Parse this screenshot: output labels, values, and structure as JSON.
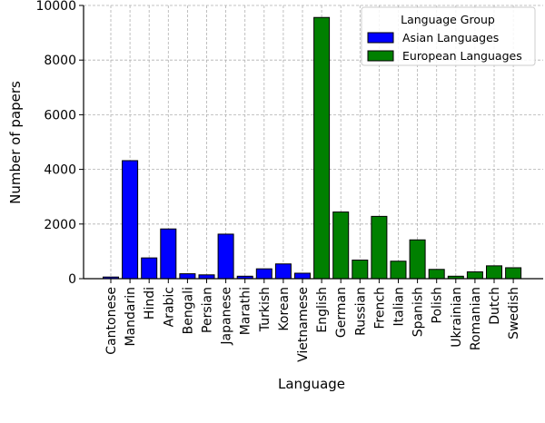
{
  "chart_data": {
    "type": "bar",
    "xlabel": "Language",
    "ylabel": "Number of papers",
    "ylim": [
      0,
      10000
    ],
    "yticks": [
      0,
      2000,
      4000,
      6000,
      8000,
      10000
    ],
    "grid": true,
    "legend": {
      "title": "Language Group",
      "placement": "top-right",
      "entries": [
        {
          "label": "Asian Languages",
          "color": "#0000ff"
        },
        {
          "label": "European Languages",
          "color": "#008000"
        }
      ]
    },
    "categories": [
      "Cantonese",
      "Mandarin",
      "Hindi",
      "Arabic",
      "Bengali",
      "Persian",
      "Japanese",
      "Marathi",
      "Turkish",
      "Korean",
      "Vietnamese",
      "English",
      "German",
      "Russian",
      "French",
      "Italian",
      "Spanish",
      "Polish",
      "Ukrainian",
      "Romanian",
      "Dutch",
      "Swedish"
    ],
    "groups": [
      "Asian Languages",
      "Asian Languages",
      "Asian Languages",
      "Asian Languages",
      "Asian Languages",
      "Asian Languages",
      "Asian Languages",
      "Asian Languages",
      "Asian Languages",
      "Asian Languages",
      "Asian Languages",
      "European Languages",
      "European Languages",
      "European Languages",
      "European Languages",
      "European Languages",
      "European Languages",
      "European Languages",
      "European Languages",
      "European Languages",
      "European Languages",
      "European Languages"
    ],
    "values": [
      60,
      4320,
      760,
      1820,
      180,
      140,
      1630,
      90,
      360,
      540,
      200,
      9560,
      2440,
      680,
      2280,
      640,
      1420,
      340,
      90,
      250,
      470,
      400
    ]
  }
}
